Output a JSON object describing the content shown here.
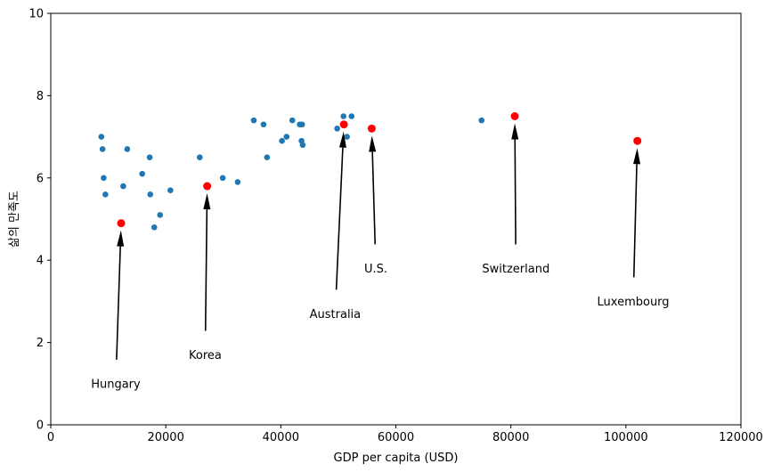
{
  "chart_data": {
    "type": "scatter",
    "title": "",
    "xlabel": "GDP per capita (USD)",
    "ylabel": "삶의 만족도",
    "xlim": [
      0,
      120000
    ],
    "ylim": [
      0,
      10
    ],
    "xticks": [
      0,
      20000,
      40000,
      60000,
      80000,
      100000,
      120000
    ],
    "xtick_labels": [
      "0",
      "20000",
      "40000",
      "60000",
      "80000",
      "100000",
      "120000"
    ],
    "yticks": [
      0,
      2,
      4,
      6,
      8,
      10
    ],
    "ytick_labels": [
      "0",
      "2",
      "4",
      "6",
      "8",
      "10"
    ],
    "grid": false,
    "colors": {
      "points": "#1f77b4",
      "highlight": "#ff0000",
      "arrow": "#000000"
    },
    "series": [
      {
        "points": [
          [
            8800,
            7.0
          ],
          [
            9000,
            6.7
          ],
          [
            9200,
            6.0
          ],
          [
            9500,
            5.6
          ],
          [
            12600,
            5.8
          ],
          [
            13300,
            6.7
          ],
          [
            15900,
            6.1
          ],
          [
            17200,
            6.5
          ],
          [
            17300,
            5.6
          ],
          [
            18000,
            4.8
          ],
          [
            19000,
            5.1
          ],
          [
            20800,
            5.7
          ],
          [
            25900,
            6.5
          ],
          [
            29900,
            6.0
          ],
          [
            32500,
            5.9
          ],
          [
            35300,
            7.4
          ],
          [
            37000,
            7.3
          ],
          [
            37600,
            6.5
          ],
          [
            40200,
            6.9
          ],
          [
            41000,
            7.0
          ],
          [
            42000,
            7.4
          ],
          [
            43300,
            7.3
          ],
          [
            43700,
            7.3
          ],
          [
            43600,
            6.9
          ],
          [
            43800,
            6.8
          ],
          [
            49800,
            7.2
          ],
          [
            50900,
            7.5
          ],
          [
            51500,
            7.0
          ],
          [
            52300,
            7.5
          ],
          [
            74900,
            7.4
          ]
        ]
      },
      {
        "points": [
          [
            12240,
            4.9
          ],
          [
            27195,
            5.8
          ],
          [
            50962,
            7.3
          ],
          [
            55805,
            7.2
          ],
          [
            80675,
            7.5
          ],
          [
            101994,
            6.9
          ]
        ]
      }
    ],
    "annotations": [
      {
        "text": "Hungary",
        "point": [
          12240,
          4.9
        ],
        "text_pos": [
          7000,
          1.0
        ]
      },
      {
        "text": "Korea",
        "point": [
          27195,
          5.8
        ],
        "text_pos": [
          24000,
          1.7
        ]
      },
      {
        "text": "Australia",
        "point": [
          50962,
          7.3
        ],
        "text_pos": [
          45000,
          2.7
        ]
      },
      {
        "text": "U.S.",
        "point": [
          55805,
          7.2
        ],
        "text_pos": [
          54500,
          3.8
        ]
      },
      {
        "text": "Switzerland",
        "point": [
          80675,
          7.5
        ],
        "text_pos": [
          75000,
          3.8
        ]
      },
      {
        "text": "Luxembourg",
        "point": [
          101994,
          6.9
        ],
        "text_pos": [
          95000,
          3.0
        ]
      }
    ]
  }
}
